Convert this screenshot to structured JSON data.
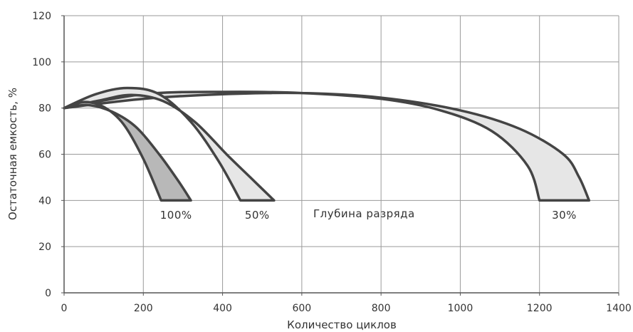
{
  "chart_data": {
    "type": "area",
    "title": "",
    "xlabel": "Количество циклов",
    "ylabel": "Остаточная емкость, %",
    "xlim": [
      0,
      1400
    ],
    "ylim": [
      0,
      120
    ],
    "xticks": [
      0,
      200,
      400,
      600,
      800,
      1000,
      1200,
      1400
    ],
    "yticks": [
      0,
      20,
      40,
      60,
      80,
      100,
      120
    ],
    "grid": true,
    "legend": "none",
    "annotation": "Глубина разряда",
    "colors": {
      "dark_band": "#b8b8b8",
      "light_band": "#e6e6e6",
      "stroke": "#444444",
      "grid": "#9a9a9a"
    },
    "series": [
      {
        "name": "100%",
        "fill": "dark",
        "upper": [
          [
            0,
            80
          ],
          [
            50,
            82.6
          ],
          [
            100,
            80.5
          ],
          [
            150,
            73
          ],
          [
            200,
            58
          ],
          [
            245,
            40
          ]
        ],
        "lower": [
          [
            0,
            80
          ],
          [
            60,
            81.3
          ],
          [
            120,
            78.5
          ],
          [
            180,
            72
          ],
          [
            240,
            60
          ],
          [
            290,
            48
          ],
          [
            320,
            40
          ]
        ]
      },
      {
        "name": "50%",
        "fill": "light",
        "upper": [
          [
            0,
            80
          ],
          [
            80,
            86
          ],
          [
            160,
            88.7
          ],
          [
            240,
            86
          ],
          [
            320,
            74
          ],
          [
            390,
            57
          ],
          [
            445,
            40
          ]
        ],
        "lower": [
          [
            0,
            80
          ],
          [
            90,
            83.3
          ],
          [
            170,
            85.7
          ],
          [
            250,
            83
          ],
          [
            330,
            74
          ],
          [
            410,
            60
          ],
          [
            470,
            50
          ],
          [
            530,
            40
          ]
        ]
      },
      {
        "name": "30%",
        "fill": "light",
        "upper": [
          [
            0,
            80
          ],
          [
            200,
            86
          ],
          [
            400,
            87
          ],
          [
            600,
            86.5
          ],
          [
            800,
            84
          ],
          [
            950,
            79
          ],
          [
            1080,
            70
          ],
          [
            1170,
            55
          ],
          [
            1200,
            40
          ]
        ],
        "lower": [
          [
            0,
            80
          ],
          [
            200,
            84
          ],
          [
            400,
            86
          ],
          [
            600,
            86.5
          ],
          [
            800,
            84.5
          ],
          [
            1000,
            79
          ],
          [
            1150,
            71
          ],
          [
            1260,
            60
          ],
          [
            1300,
            50
          ],
          [
            1325,
            40
          ]
        ]
      }
    ]
  }
}
